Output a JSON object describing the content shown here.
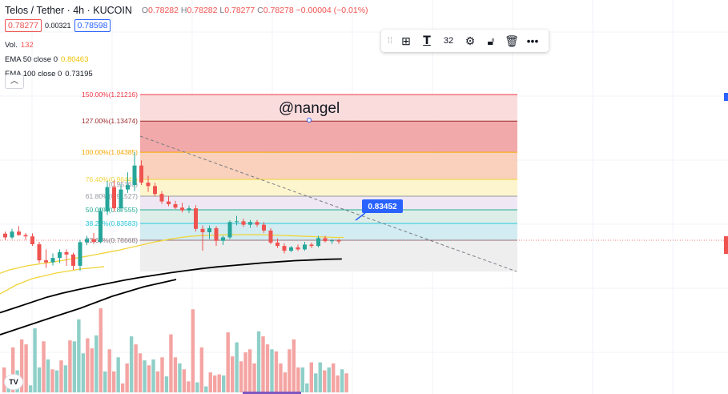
{
  "header": {
    "symbol": "Telos / Tether · 4h · KUCOIN",
    "o_key": "O",
    "o_val": "0.78282",
    "h_key": "H",
    "h_val": "0.78282",
    "l_key": "L",
    "l_val": "0.78277",
    "c_key": "C",
    "c_val": "0.78278",
    "change": "−0.00004 (−0.01%)",
    "sell_price": "0.78277",
    "spread": "0.00321",
    "buy_price": "0.78598"
  },
  "indicators": {
    "vol_label": "Vol.",
    "vol_value": "132",
    "ema50_label": "EMA 50 close 0",
    "ema50_value": "0.80463",
    "ema100_label": "EMA 100 close 0",
    "ema100_value": "0.73195"
  },
  "collapse_icon": "chevron-up-icon",
  "toolbar": {
    "font_size": "32",
    "icons": [
      "drag-handle-icon",
      "template-icon",
      "text-color-icon",
      "settings-icon",
      "lock-icon",
      "trash-icon",
      "more-icon"
    ]
  },
  "colors": {
    "up": "#26a69a",
    "down": "#ef5350",
    "ema50": "#f0d43a",
    "ema100": "#000000",
    "callout": "#2962ff"
  },
  "chart_data": {
    "type": "candlestick",
    "price_scale_visible_range": [
      0.69,
      1.25
    ],
    "candles": [
      {
        "o": 0.806,
        "h": 0.812,
        "l": 0.788,
        "c": 0.795
      },
      {
        "o": 0.795,
        "h": 0.82,
        "l": 0.79,
        "c": 0.812
      },
      {
        "o": 0.812,
        "h": 0.828,
        "l": 0.8,
        "c": 0.802
      },
      {
        "o": 0.802,
        "h": 0.808,
        "l": 0.788,
        "c": 0.798
      },
      {
        "o": 0.798,
        "h": 0.807,
        "l": 0.77,
        "c": 0.775
      },
      {
        "o": 0.775,
        "h": 0.782,
        "l": 0.72,
        "c": 0.728
      },
      {
        "o": 0.728,
        "h": 0.76,
        "l": 0.706,
        "c": 0.722
      },
      {
        "o": 0.722,
        "h": 0.748,
        "l": 0.713,
        "c": 0.735
      },
      {
        "o": 0.735,
        "h": 0.76,
        "l": 0.72,
        "c": 0.752
      },
      {
        "o": 0.752,
        "h": 0.76,
        "l": 0.712,
        "c": 0.745
      },
      {
        "o": 0.745,
        "h": 0.75,
        "l": 0.7,
        "c": 0.712
      },
      {
        "o": 0.712,
        "h": 0.788,
        "l": 0.697,
        "c": 0.781
      },
      {
        "o": 0.781,
        "h": 0.8,
        "l": 0.772,
        "c": 0.79
      },
      {
        "o": 0.79,
        "h": 0.808,
        "l": 0.776,
        "c": 0.782
      },
      {
        "o": 0.782,
        "h": 0.88,
        "l": 0.778,
        "c": 0.872
      },
      {
        "o": 0.872,
        "h": 0.96,
        "l": 0.86,
        "c": 0.942
      },
      {
        "o": 0.942,
        "h": 0.962,
        "l": 0.87,
        "c": 0.88
      },
      {
        "o": 0.88,
        "h": 0.95,
        "l": 0.87,
        "c": 0.935
      },
      {
        "o": 0.935,
        "h": 0.985,
        "l": 0.925,
        "c": 0.948
      },
      {
        "o": 0.948,
        "h": 1.044,
        "l": 0.93,
        "c": 1.005
      },
      {
        "o": 1.005,
        "h": 1.02,
        "l": 0.948,
        "c": 0.955
      },
      {
        "o": 0.955,
        "h": 0.975,
        "l": 0.928,
        "c": 0.945
      },
      {
        "o": 0.945,
        "h": 0.955,
        "l": 0.915,
        "c": 0.922
      },
      {
        "o": 0.922,
        "h": 0.93,
        "l": 0.893,
        "c": 0.9
      },
      {
        "o": 0.9,
        "h": 0.915,
        "l": 0.886,
        "c": 0.892
      },
      {
        "o": 0.892,
        "h": 0.902,
        "l": 0.878,
        "c": 0.882
      },
      {
        "o": 0.882,
        "h": 0.896,
        "l": 0.868,
        "c": 0.874
      },
      {
        "o": 0.874,
        "h": 0.888,
        "l": 0.866,
        "c": 0.88
      },
      {
        "o": 0.88,
        "h": 0.889,
        "l": 0.812,
        "c": 0.82
      },
      {
        "o": 0.82,
        "h": 0.83,
        "l": 0.756,
        "c": 0.81
      },
      {
        "o": 0.81,
        "h": 0.83,
        "l": 0.79,
        "c": 0.822
      },
      {
        "o": 0.822,
        "h": 0.828,
        "l": 0.77,
        "c": 0.785
      },
      {
        "o": 0.785,
        "h": 0.8,
        "l": 0.773,
        "c": 0.795
      },
      {
        "o": 0.795,
        "h": 0.845,
        "l": 0.79,
        "c": 0.84
      },
      {
        "o": 0.84,
        "h": 0.858,
        "l": 0.83,
        "c": 0.842
      },
      {
        "o": 0.842,
        "h": 0.85,
        "l": 0.826,
        "c": 0.832
      },
      {
        "o": 0.832,
        "h": 0.846,
        "l": 0.823,
        "c": 0.84
      },
      {
        "o": 0.84,
        "h": 0.846,
        "l": 0.826,
        "c": 0.832
      },
      {
        "o": 0.832,
        "h": 0.84,
        "l": 0.808,
        "c": 0.815
      },
      {
        "o": 0.815,
        "h": 0.822,
        "l": 0.775,
        "c": 0.78
      },
      {
        "o": 0.78,
        "h": 0.792,
        "l": 0.764,
        "c": 0.77
      },
      {
        "o": 0.77,
        "h": 0.778,
        "l": 0.748,
        "c": 0.756
      },
      {
        "o": 0.756,
        "h": 0.77,
        "l": 0.752,
        "c": 0.766
      },
      {
        "o": 0.766,
        "h": 0.774,
        "l": 0.755,
        "c": 0.76
      },
      {
        "o": 0.76,
        "h": 0.782,
        "l": 0.756,
        "c": 0.774
      },
      {
        "o": 0.774,
        "h": 0.78,
        "l": 0.764,
        "c": 0.77
      },
      {
        "o": 0.77,
        "h": 0.8,
        "l": 0.766,
        "c": 0.793
      },
      {
        "o": 0.793,
        "h": 0.8,
        "l": 0.78,
        "c": 0.784
      },
      {
        "o": 0.784,
        "h": 0.79,
        "l": 0.776,
        "c": 0.786
      },
      {
        "o": 0.786,
        "h": 0.791,
        "l": 0.776,
        "c": 0.783
      }
    ],
    "volumes": [
      0.25,
      0.09,
      0.45,
      0.22,
      0.53,
      0.48,
      0.07,
      0.64,
      0.25,
      0.51,
      0.33,
      0.23,
      0.22,
      0.32,
      0.27,
      0.52,
      0.51,
      0.73,
      0.39,
      0.54,
      0.44,
      0.57,
      0.84,
      0.21,
      0.43,
      0.21,
      0.35,
      0.09,
      0.29,
      0.56,
      0.48,
      0.39,
      0.32,
      0.27,
      0.33,
      0.21,
      0.35,
      0.16,
      0.58,
      0.35,
      0.29,
      0.23,
      0.11,
      0.83,
      0.1,
      0.45,
      0.06,
      0.2,
      0.17,
      0.18,
      0.17,
      0.6,
      0.36,
      0.5,
      0.31,
      0.4,
      0.43,
      0.29,
      0.61,
      0.56,
      0.48,
      0.43,
      0.41,
      0.29,
      0.2,
      0.43,
      0.53,
      0.25,
      0.25,
      0.09,
      0.3,
      0.19,
      0.3,
      0.22,
      0.25,
      0.29,
      0.17,
      0.23,
      0.19
    ],
    "volume_up": [
      false,
      true,
      false,
      true,
      false,
      false,
      true,
      true,
      true,
      false,
      true,
      false,
      true,
      false,
      true,
      false,
      true,
      true,
      true,
      false,
      false,
      true,
      false,
      true,
      false,
      false,
      true,
      false,
      false,
      true,
      false,
      false,
      true,
      false,
      true,
      false,
      false,
      true,
      false,
      false,
      true,
      false,
      false,
      false,
      true,
      false,
      true,
      false,
      false,
      false,
      true,
      false,
      false,
      true,
      false,
      false,
      false,
      false,
      true,
      false,
      false,
      true,
      false,
      false,
      false,
      false,
      false,
      false,
      true,
      true,
      false,
      true,
      true,
      false,
      true,
      false,
      false,
      true,
      false
    ],
    "ema50": [
      0.69,
      0.7,
      0.706,
      0.712,
      0.716,
      0.72,
      0.724,
      0.728,
      0.733,
      0.737,
      0.742,
      0.747,
      0.752,
      0.757,
      0.763,
      0.769,
      0.775,
      0.781,
      0.786,
      0.791,
      0.795,
      0.798,
      0.8,
      0.801,
      0.802,
      0.803,
      0.803,
      0.803,
      0.803,
      0.803,
      0.802,
      0.801,
      0.8,
      0.799,
      0.798,
      0.797,
      0.796,
      0.795,
      0.795
    ],
    "ema100": [
      0.575,
      0.59,
      0.605,
      0.62,
      0.632,
      0.642,
      0.652,
      0.661,
      0.67,
      0.678,
      0.685,
      0.692,
      0.698,
      0.704,
      0.709,
      0.713,
      0.717,
      0.721,
      0.724,
      0.727,
      0.729,
      0.731,
      0.732
    ],
    "fibonacci": [
      {
        "label": "150.00%(1.21216)",
        "value": 1.21216,
        "color": "#f23645"
      },
      {
        "label": "127.00%(1.13474)",
        "value": 1.13474,
        "color": "#9c2b2b"
      },
      {
        "label": "100.00%(1.04385)",
        "value": 1.04385,
        "color": "#f7a600"
      },
      {
        "label": "76.40%(0.96441)",
        "value": 0.96441,
        "color": "#f0d43a"
      },
      {
        "label": "61.80%(0.91527)",
        "value": 0.91527,
        "color": "#9598a1"
      },
      {
        "label": "50.00%(0.87555)",
        "value": 0.87555,
        "color": "#22ab94"
      },
      {
        "label": "38.20%(0.83583)",
        "value": 0.83583,
        "color": "#26c6da"
      },
      {
        "label": "23.60%(0.78668)",
        "value": 0.78668,
        "color": "#787b86"
      }
    ],
    "fib_overlapped_labels": [
      "(0.95163)"
    ],
    "annotation_text": "@nangel",
    "callout_price": "0.83452"
  }
}
